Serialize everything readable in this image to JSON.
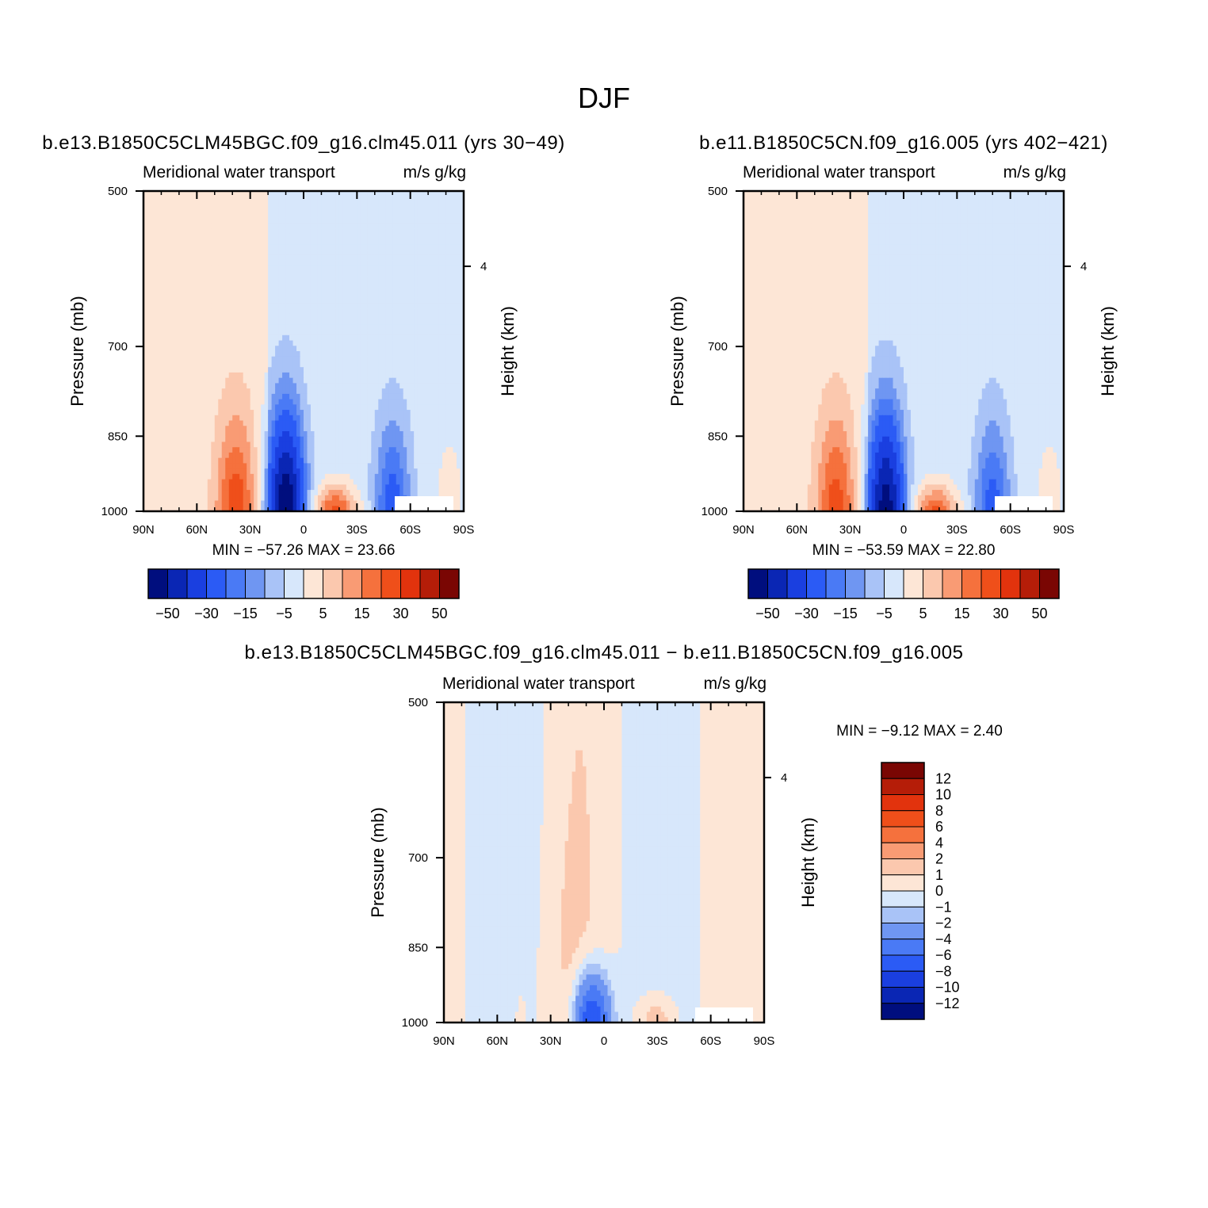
{
  "title": "DJF",
  "colors": {
    "levels14": [
      "#000e7e",
      "#0a26b4",
      "#1a3fe0",
      "#2b5bf5",
      "#4a7af5",
      "#6f96f2",
      "#a9c3f7",
      "#d7e7fb",
      "#fde6d6",
      "#fbc8ae",
      "#f99b74",
      "#f5713d",
      "#ef4f1a",
      "#e2330d",
      "#b51d08",
      "#7a0603"
    ],
    "land": "#ffffff"
  },
  "panels": [
    {
      "id": "panel-case1",
      "run_title": "b.e13.B1850C5CLM45BGC.f09_g16.clm45.011 (yrs 30−49)",
      "left_subtitle": "Meridional water transport",
      "right_subtitle": "m/s g/kg",
      "ylabel": "Pressure (mb)",
      "ylabel_right": "Height (km)",
      "stats": "MIN =  −57.26   MAX =   23.66"
    },
    {
      "id": "panel-case2",
      "run_title": "b.e11.B1850C5CN.f09_g16.005 (yrs 402−421)",
      "left_subtitle": "Meridional water transport",
      "right_subtitle": "m/s g/kg",
      "ylabel": "Pressure (mb)",
      "ylabel_right": "Height (km)",
      "stats": "MIN =  −53.59   MAX =   22.80"
    },
    {
      "id": "panel-diff",
      "run_title": "b.e13.B1850C5CLM45BGC.f09_g16.clm45.011 − b.e11.B1850C5CN.f09_g16.005",
      "left_subtitle": "Meridional water transport",
      "right_subtitle": "m/s g/kg",
      "ylabel": "Pressure (mb)",
      "ylabel_right": "Height (km)",
      "stats": "MIN =   −9.12   MAX =    2.40"
    }
  ],
  "chart_data": [
    {
      "type": "heatmap",
      "title": "b.e13.B1850C5CLM45BGC.f09_g16.clm45.011 (yrs 30−49)",
      "xlabel": "",
      "ylabel": "Pressure (mb)",
      "y2label": "Height (km)",
      "x_ticks": [
        "90N",
        "60N",
        "30N",
        "0",
        "30S",
        "60S",
        "90S"
      ],
      "y_ticks": [
        "500",
        "700",
        "850",
        "1000"
      ],
      "y2_ticks": [
        "4"
      ],
      "xlim": [
        90,
        -90
      ],
      "ylim": [
        1000,
        500
      ],
      "contour_levels": [
        -50,
        -40,
        -30,
        -20,
        -15,
        -10,
        -5,
        0,
        5,
        10,
        15,
        20,
        30,
        40,
        50
      ],
      "colorbar_labels": [
        "−50",
        "−30",
        "−15",
        "−5",
        "5",
        "15",
        "30",
        "50"
      ],
      "min": -57.26,
      "max": 23.66,
      "features": [
        {
          "lat": 38,
          "p_top": 720,
          "peak": 22,
          "sign": "positive"
        },
        {
          "lat": 10,
          "p_top": 720,
          "peak": -57.26,
          "sign": "negative"
        },
        {
          "lat": -18,
          "p_top": 920,
          "peak": 23.66,
          "sign": "positive"
        },
        {
          "lat": -50,
          "p_top": 730,
          "peak": -22,
          "sign": "negative"
        },
        {
          "lat": -82,
          "p_top": 690,
          "peak": 3,
          "sign": "positive"
        }
      ]
    },
    {
      "type": "heatmap",
      "title": "b.e11.B1850C5CN.f09_g16.005 (yrs 402−421)",
      "xlabel": "",
      "ylabel": "Pressure (mb)",
      "y2label": "Height (km)",
      "x_ticks": [
        "90N",
        "60N",
        "30N",
        "0",
        "30S",
        "60S",
        "90S"
      ],
      "y_ticks": [
        "500",
        "700",
        "850",
        "1000"
      ],
      "y2_ticks": [
        "4"
      ],
      "xlim": [
        90,
        -90
      ],
      "ylim": [
        1000,
        500
      ],
      "contour_levels": [
        -50,
        -40,
        -30,
        -20,
        -15,
        -10,
        -5,
        0,
        5,
        10,
        15,
        20,
        30,
        40,
        50
      ],
      "colorbar_labels": [
        "−50",
        "−30",
        "−15",
        "−5",
        "5",
        "15",
        "30",
        "50"
      ],
      "min": -53.59,
      "max": 22.8,
      "features": [
        {
          "lat": 38,
          "p_top": 720,
          "peak": 21,
          "sign": "positive"
        },
        {
          "lat": 10,
          "p_top": 720,
          "peak": -53.59,
          "sign": "negative"
        },
        {
          "lat": -18,
          "p_top": 920,
          "peak": 22.8,
          "sign": "positive"
        },
        {
          "lat": -50,
          "p_top": 730,
          "peak": -21,
          "sign": "negative"
        },
        {
          "lat": -82,
          "p_top": 690,
          "peak": 3,
          "sign": "positive"
        }
      ]
    },
    {
      "type": "heatmap",
      "title": "b.e13.B1850C5CLM45BGC.f09_g16.clm45.011 − b.e11.B1850C5CN.f09_g16.005",
      "xlabel": "",
      "ylabel": "Pressure (mb)",
      "y2label": "Height (km)",
      "x_ticks": [
        "90N",
        "60N",
        "30N",
        "0",
        "30S",
        "60S",
        "90S"
      ],
      "y_ticks": [
        "500",
        "700",
        "850",
        "1000"
      ],
      "y2_ticks": [
        "4"
      ],
      "xlim": [
        90,
        -90
      ],
      "ylim": [
        1000,
        500
      ],
      "contour_levels": [
        -12,
        -10,
        -8,
        -6,
        -4,
        -2,
        -1,
        0,
        1,
        2,
        4,
        6,
        8,
        10,
        12
      ],
      "colorbar_labels": [
        "12",
        "10",
        "8",
        "6",
        "4",
        "2",
        "1",
        "0",
        "−1",
        "−2",
        "−4",
        "−6",
        "−8",
        "−10",
        "−12"
      ],
      "min": -9.12,
      "max": 2.4,
      "features": [
        {
          "lat": 7,
          "p_top": 850,
          "peak": -9.12,
          "sign": "negative"
        },
        {
          "lat": 50,
          "p_top": 500,
          "peak": 0.8,
          "sign": "positive"
        },
        {
          "lat": 18,
          "p_top": 500,
          "peak": 0.8,
          "sign": "positive"
        },
        {
          "lat": -30,
          "p_top": 900,
          "peak": 2.4,
          "sign": "positive"
        }
      ]
    }
  ]
}
